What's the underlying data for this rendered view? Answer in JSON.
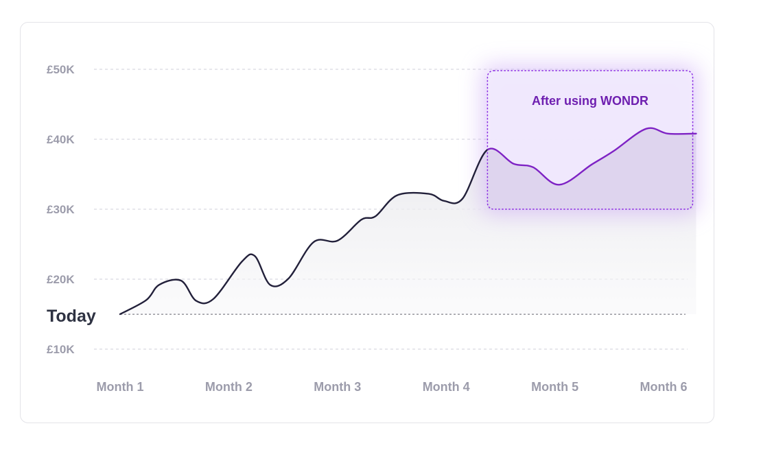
{
  "chart_data": {
    "type": "line",
    "x_categories": [
      "Month 1",
      "Month 2",
      "Month 3",
      "Month 4",
      "Month 5",
      "Month 6"
    ],
    "y_ticks": [
      {
        "value": 10000,
        "label": "£10K"
      },
      {
        "value": 20000,
        "label": "£20K"
      },
      {
        "value": 30000,
        "label": "£30K"
      },
      {
        "value": 40000,
        "label": "£40K"
      },
      {
        "value": 50000,
        "label": "£50K"
      }
    ],
    "ylim": [
      10000,
      50000
    ],
    "grid": true,
    "reference_line": {
      "value": 15000,
      "label": "Today"
    },
    "series": [
      {
        "values": [
          {
            "x": 1.0,
            "y": 15000
          },
          {
            "x": 1.24,
            "y": 17000
          },
          {
            "x": 1.36,
            "y": 19200
          },
          {
            "x": 1.56,
            "y": 19800
          },
          {
            "x": 1.7,
            "y": 16900
          },
          {
            "x": 1.86,
            "y": 17200
          },
          {
            "x": 2.12,
            "y": 22500
          },
          {
            "x": 2.24,
            "y": 23300
          },
          {
            "x": 2.38,
            "y": 19200
          },
          {
            "x": 2.55,
            "y": 20100
          },
          {
            "x": 2.78,
            "y": 25300
          },
          {
            "x": 3.0,
            "y": 25500
          },
          {
            "x": 3.22,
            "y": 28500
          },
          {
            "x": 3.35,
            "y": 29000
          },
          {
            "x": 3.55,
            "y": 32000
          },
          {
            "x": 3.84,
            "y": 32200
          },
          {
            "x": 3.98,
            "y": 31200
          },
          {
            "x": 4.15,
            "y": 31500
          },
          {
            "x": 4.38,
            "y": 38500
          },
          {
            "x": 4.62,
            "y": 36500
          },
          {
            "x": 4.8,
            "y": 36000
          },
          {
            "x": 5.04,
            "y": 33500
          },
          {
            "x": 5.34,
            "y": 36400
          },
          {
            "x": 5.54,
            "y": 38300
          },
          {
            "x": 5.84,
            "y": 41500
          },
          {
            "x": 6.04,
            "y": 40800
          },
          {
            "x": 6.3,
            "y": 40800
          }
        ]
      }
    ],
    "highlight": {
      "label": "After using WONDR",
      "x_range": [
        4.38,
        6.3
      ],
      "y_range": [
        30000,
        49800
      ]
    },
    "colors": {
      "line": "#22203a",
      "highlight_line": "#7e22c4",
      "highlight_border": "#8a2be2",
      "highlight_fill": "#f1eafd",
      "grid": "#cfcfd8",
      "today_line": "#5a5a66",
      "area": "#ededf0"
    }
  }
}
